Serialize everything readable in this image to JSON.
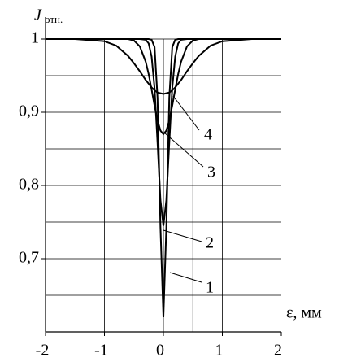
{
  "chart_data": {
    "type": "line",
    "ylabel_symbol": "J",
    "ylabel_subscript": "отн.",
    "xlabel": "ε, мм",
    "x": [
      -2,
      -1.5,
      -1,
      -0.8,
      -0.6,
      -0.5,
      -0.4,
      -0.3,
      -0.25,
      -0.2,
      -0.15,
      -0.1,
      -0.05,
      0,
      0.05,
      0.1,
      0.15,
      0.2,
      0.25,
      0.3,
      0.4,
      0.5,
      0.6,
      0.8,
      1,
      1.5,
      2
    ],
    "series": [
      {
        "name": "1",
        "color": "#000000",
        "values": [
          1,
          1,
          1,
          1,
          1,
          1,
          1,
          1,
          1,
          0.999,
          0.989,
          0.92,
          0.743,
          0.62,
          0.743,
          0.92,
          0.989,
          0.999,
          1,
          1,
          1,
          1,
          1,
          1,
          1,
          1,
          1
        ]
      },
      {
        "name": "2",
        "color": "#000000",
        "values": [
          1,
          1,
          1,
          1,
          1,
          1,
          1,
          0.999,
          0.994,
          0.976,
          0.933,
          0.859,
          0.78,
          0.745,
          0.78,
          0.859,
          0.933,
          0.976,
          0.994,
          0.999,
          1,
          1,
          1,
          1,
          1,
          1,
          1
        ]
      },
      {
        "name": "3",
        "color": "#000000",
        "values": [
          1,
          1,
          1,
          1,
          1,
          0.998,
          0.99,
          0.969,
          0.952,
          0.931,
          0.909,
          0.889,
          0.875,
          0.87,
          0.875,
          0.889,
          0.909,
          0.931,
          0.952,
          0.969,
          0.99,
          0.998,
          1,
          1,
          1,
          1,
          1
        ]
      },
      {
        "name": "4",
        "color": "#000000",
        "values": [
          1,
          1,
          0.997,
          0.991,
          0.977,
          0.967,
          0.956,
          0.944,
          0.939,
          0.934,
          0.93,
          0.927,
          0.926,
          0.925,
          0.926,
          0.927,
          0.93,
          0.934,
          0.939,
          0.944,
          0.956,
          0.967,
          0.977,
          0.991,
          0.997,
          1,
          1
        ]
      }
    ],
    "xlim": [
      -2,
      2
    ],
    "ylim": [
      0.6,
      1.03
    ],
    "xticks": [
      -2,
      -1,
      0,
      1,
      2
    ],
    "yticks": [
      {
        "value": 1,
        "label": "1"
      },
      {
        "value": 0.9,
        "label": "0,9"
      },
      {
        "value": 0.8,
        "label": "0,8"
      },
      {
        "value": 0.7,
        "label": "0,7"
      }
    ],
    "ygrid": [
      0.65,
      0.7,
      0.75,
      0.8,
      0.85,
      0.9,
      0.95,
      1
    ],
    "xgrid": [
      -1,
      0,
      0.5,
      1
    ]
  }
}
